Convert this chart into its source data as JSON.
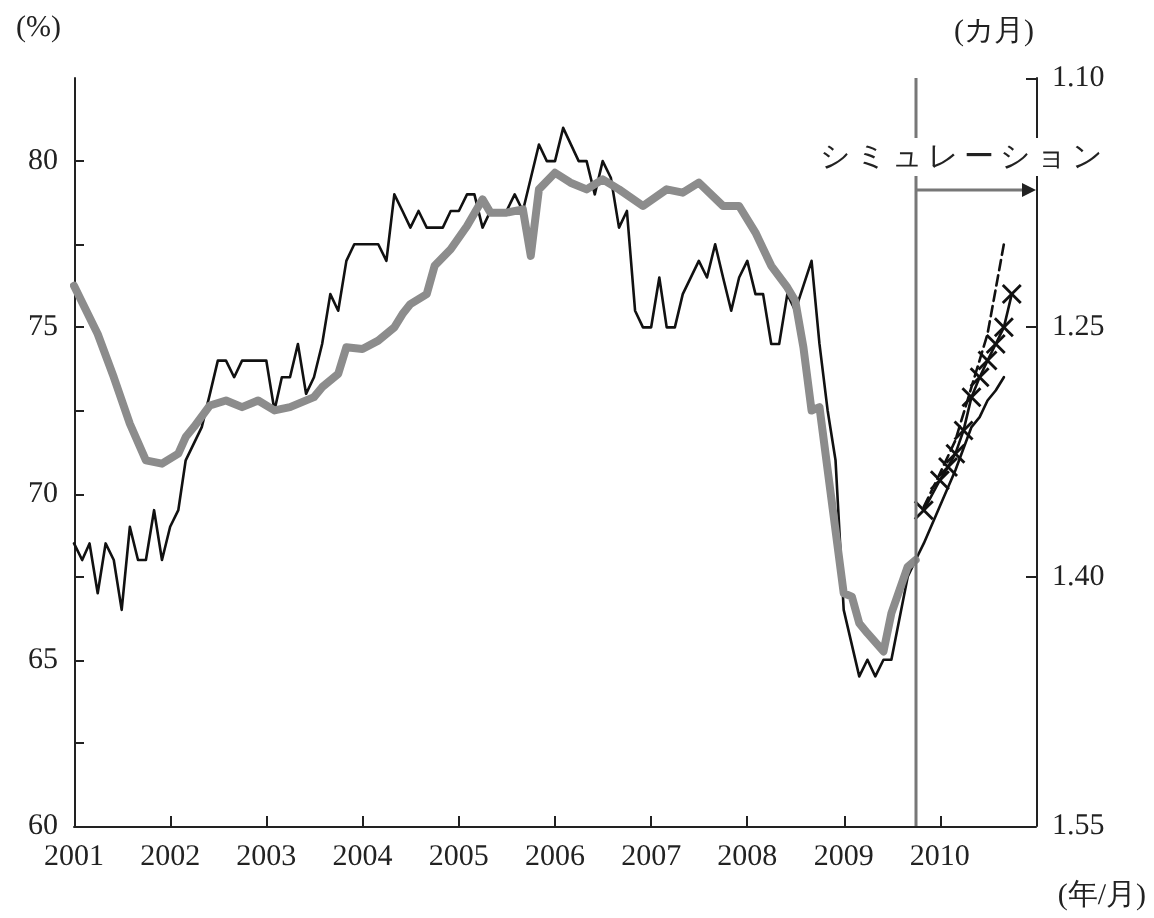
{
  "chart_data": {
    "type": "line",
    "ylabel": "(%)",
    "y2label": "(カ月)",
    "xlabel": "(年/月)",
    "xlim": [
      "2001-01",
      "2011-01"
    ],
    "xticks": [
      {
        "value": "2001-01",
        "label": "2001"
      },
      {
        "value": "2002-01",
        "label": "2002"
      },
      {
        "value": "2003-01",
        "label": "2003"
      },
      {
        "value": "2004-01",
        "label": "2004"
      },
      {
        "value": "2005-01",
        "label": "2005"
      },
      {
        "value": "2006-01",
        "label": "2006"
      },
      {
        "value": "2007-01",
        "label": "2007"
      },
      {
        "value": "2008-01",
        "label": "2008"
      },
      {
        "value": "2009-01",
        "label": "2009"
      },
      {
        "value": "2010-01",
        "label": "2010"
      }
    ],
    "ylim": [
      60,
      82.5
    ],
    "yticks": [
      60,
      {
        "value": 62.5,
        "label": null
      },
      65,
      {
        "value": 67.5,
        "label": null
      },
      70,
      {
        "value": 72.5,
        "label": null
      },
      75,
      {
        "value": 77.5,
        "label": null
      },
      80
    ],
    "y2lim": [
      1.55,
      1.1
    ],
    "y2ticks": [
      {
        "value": 1.1,
        "label": "1.10"
      },
      1.25,
      {
        "value": 1.4,
        "label": "1.40"
      },
      1.55
    ],
    "grid": false,
    "marker": "none",
    "ref_lines": [
      {
        "axis": "x",
        "value": "2009-10",
        "label": "シミュレーション",
        "color": "#777777"
      }
    ],
    "series": [
      {
        "color": "#111111",
        "line_style": "solid",
        "x": [
          "2001-01",
          "2001-02",
          "2001-03",
          "2001-04",
          "2001-05",
          "2001-06",
          "2001-07",
          "2001-08",
          "2001-09",
          "2001-10",
          "2001-11",
          "2001-12",
          "2002-01",
          "2002-02",
          "2002-03",
          "2002-05",
          "2002-06",
          "2002-07",
          "2002-08",
          "2002-09",
          "2002-10",
          "2003-01",
          "2003-02",
          "2003-03",
          "2003-04",
          "2003-05",
          "2003-06",
          "2003-07",
          "2003-08",
          "2003-09",
          "2003-10",
          "2003-11",
          "2003-12",
          "2004-03",
          "2004-04",
          "2004-05",
          "2004-06",
          "2004-07",
          "2004-08",
          "2004-09",
          "2004-11",
          "2004-12",
          "2005-01",
          "2005-02",
          "2005-03",
          "2005-04",
          "2005-05",
          "2005-07",
          "2005-08",
          "2005-09",
          "2005-11",
          "2005-12",
          "2006-01",
          "2006-02",
          "2006-04",
          "2006-05",
          "2006-06",
          "2006-07",
          "2006-08",
          "2006-09",
          "2006-10",
          "2006-11",
          "2006-12",
          "2007-01",
          "2007-02",
          "2007-03",
          "2007-04",
          "2007-05",
          "2007-07",
          "2007-08",
          "2007-09",
          "2007-10",
          "2007-11",
          "2007-12",
          "2008-01",
          "2008-02",
          "2008-03",
          "2008-04",
          "2008-05",
          "2008-06",
          "2008-07",
          "2008-09",
          "2008-10",
          "2008-11",
          "2008-12",
          "2009-01",
          "2009-03",
          "2009-04",
          "2009-05",
          "2009-06",
          "2009-07",
          "2009-09",
          "2009-10",
          "2009-11",
          "2010-03",
          "2010-05",
          "2010-06",
          "2010-07",
          "2010-08",
          "2010-09"
        ],
        "values": [
          68.5,
          68,
          68.5,
          67,
          68.5,
          68,
          66.5,
          69,
          68,
          68,
          69.5,
          68,
          69,
          69.5,
          71,
          72,
          73,
          74,
          74,
          73.5,
          74,
          74,
          72.5,
          73.5,
          73.5,
          74.5,
          73,
          73.5,
          74.5,
          76,
          75.5,
          77,
          77.5,
          77.5,
          77,
          79,
          78.5,
          78,
          78.5,
          78,
          78,
          78.5,
          78.5,
          79,
          79,
          78,
          78.5,
          78.5,
          79,
          78.5,
          80.5,
          80,
          80,
          81,
          80,
          80,
          79,
          80,
          79.5,
          78,
          78.5,
          75.5,
          75,
          75,
          76.5,
          75,
          75,
          76,
          77,
          76.5,
          77.5,
          76.5,
          75.5,
          76.5,
          77,
          76,
          76,
          74.5,
          74.5,
          76,
          75.5,
          77,
          74.5,
          72.5,
          71,
          66.5,
          64.5,
          65,
          64.5,
          65,
          65,
          67.5,
          68,
          68.5,
          70.7,
          72,
          72.3,
          72.8,
          73.1,
          73.5
        ]
      },
      {
        "color": "#8c8c8c",
        "axis": "y2",
        "line_style": "solid",
        "x": [
          "2001-01",
          "2001-04",
          "2001-06",
          "2001-08",
          "2001-10",
          "2001-12",
          "2002-02",
          "2002-03",
          "2002-04",
          "2002-06",
          "2002-08",
          "2002-10",
          "2002-12",
          "2003-02",
          "2003-04",
          "2003-07",
          "2003-08",
          "2003-10",
          "2003-11",
          "2004-01",
          "2004-03",
          "2004-05",
          "2004-06",
          "2004-07",
          "2004-09",
          "2004-10",
          "2004-12",
          "2005-02",
          "2005-04",
          "2005-05",
          "2005-07",
          "2005-09",
          "2005-10",
          "2005-11",
          "2006-01",
          "2006-03",
          "2006-05",
          "2006-07",
          "2006-09",
          "2006-12",
          "2007-03",
          "2007-05",
          "2007-07",
          "2007-10",
          "2007-12",
          "2008-02",
          "2008-04",
          "2008-06",
          "2008-07",
          "2008-08",
          "2008-09",
          "2008-10",
          "2009-01",
          "2009-02",
          "2009-03",
          "2009-04",
          "2009-06",
          "2009-07",
          "2009-09",
          "2009-10"
        ],
        "values": [
          1.225,
          1.254,
          1.28,
          1.308,
          1.33,
          1.332,
          1.326,
          1.316,
          1.31,
          1.297,
          1.294,
          1.298,
          1.294,
          1.3,
          1.298,
          1.292,
          1.286,
          1.278,
          1.262,
          1.263,
          1.258,
          1.25,
          1.242,
          1.236,
          1.23,
          1.213,
          1.203,
          1.189,
          1.173,
          1.181,
          1.181,
          1.179,
          1.207,
          1.167,
          1.157,
          1.163,
          1.167,
          1.161,
          1.167,
          1.177,
          1.167,
          1.169,
          1.163,
          1.177,
          1.177,
          1.193,
          1.213,
          1.226,
          1.234,
          1.262,
          1.3,
          1.298,
          1.41,
          1.412,
          1.428,
          1.434,
          1.445,
          1.422,
          1.394,
          1.39
        ]
      },
      {
        "color": "#111111",
        "line_style": "dashed",
        "x": [
          "2009-11",
          "2010-01",
          "2010-03",
          "2010-05",
          "2010-07",
          "2010-09"
        ],
        "values": [
          69.6,
          70.6,
          71.6,
          73.2,
          74.8,
          77.5
        ]
      },
      {
        "color": "#111111",
        "line_style": "solid",
        "marker": "cross",
        "x": [
          "2009-11",
          "2010-01",
          "2010-02",
          "2010-03",
          "2010-04",
          "2010-05",
          "2010-06",
          "2010-07",
          "2010-08",
          "2010-09",
          "2010-10"
        ],
        "values": [
          69.5,
          70.4,
          70.8,
          71.2,
          71.9,
          72.9,
          73.5,
          74,
          74.5,
          75,
          76
        ]
      }
    ]
  }
}
